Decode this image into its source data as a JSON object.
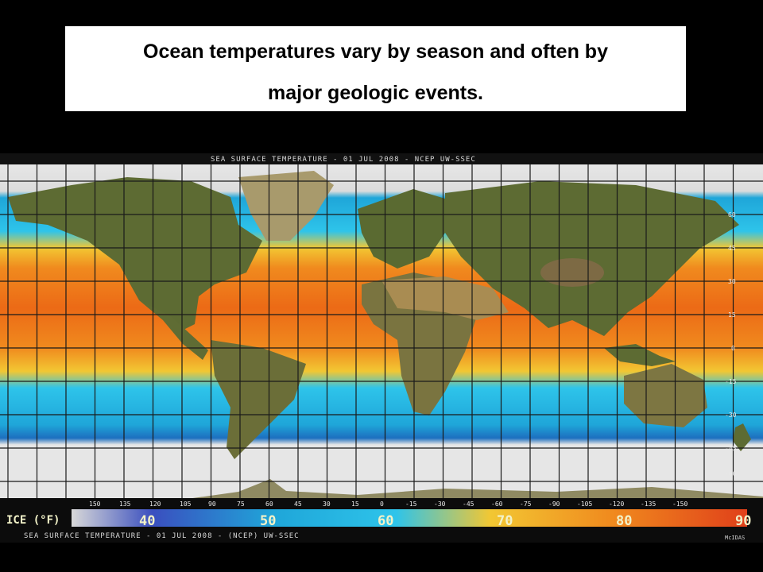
{
  "slide": {
    "title_line1": "Ocean temperatures vary by season and often by",
    "title_line2": "major geologic events."
  },
  "map": {
    "header_text": "SEA SURFACE TEMPERATURE - 01 JUL 2008 - NCEP UW-SSEC",
    "footer_text": "SEA SURFACE TEMPERATURE - 01 JUL 2008 - (NCEP) UW-SSEC",
    "credit": "McIDAS",
    "lat_labels": [
      "60",
      "45",
      "30",
      "15",
      "0",
      "-15",
      "-30",
      "-45",
      "-60"
    ],
    "lon_labels": [
      "150",
      "135",
      "120",
      "105",
      "90",
      "75",
      "60",
      "45",
      "30",
      "15",
      "0",
      "-15",
      "-30",
      "-45",
      "-60",
      "-75",
      "-90",
      "-105",
      "-120",
      "-135",
      "-150"
    ],
    "scale_label": "ICE (°F)",
    "scale_values": [
      "40",
      "50",
      "60",
      "70",
      "80",
      "90"
    ],
    "colors": {
      "ice": "#e6e6e6",
      "cold": "#1fa6d9",
      "cool": "#2ec4ea",
      "mild": "#f2c733",
      "warm": "#f08a1e",
      "hot": "#ec6a16",
      "land": "#5d6b33",
      "desert": "#a98c52",
      "grid": "#1a1a1a"
    }
  }
}
